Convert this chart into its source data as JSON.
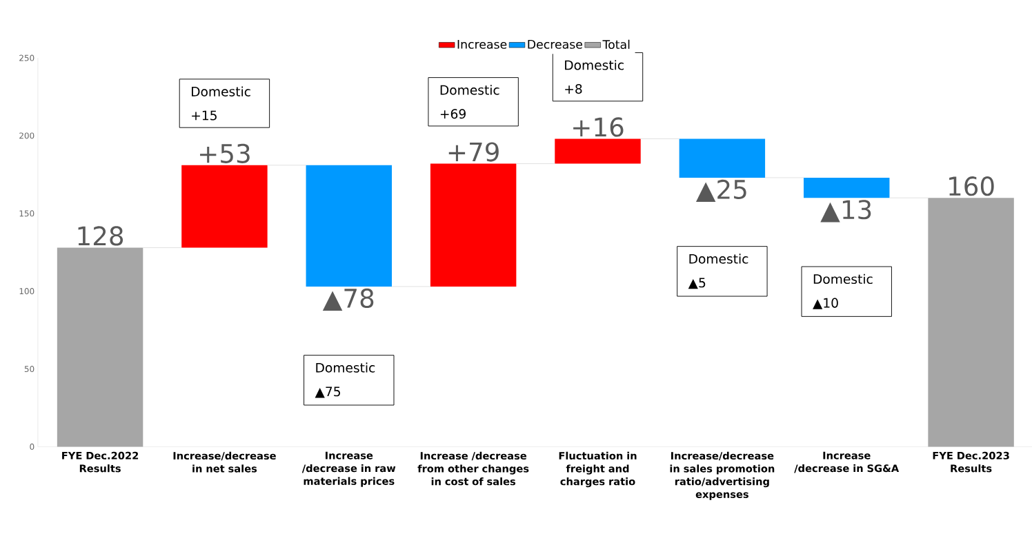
{
  "chart_data": {
    "type": "bar",
    "categories": [
      "FYE Dec.2022 Results",
      "Increase/decrease in net sales",
      "Increase /decrease in raw materials prices",
      "Increase /decrease from other changes in cost of sales",
      "Fluctuation in freight and charges ratio",
      "Increase/decrease in sales promotion ratio/advertising expenses",
      "Increase /decrease in SG&A",
      "FYE Dec.2023 Results"
    ],
    "series": [
      {
        "name": "Increase",
        "color": "#ff0000",
        "base": [
          null,
          128,
          null,
          103,
          182,
          null,
          null,
          null
        ],
        "values": [
          null,
          53,
          null,
          79,
          16,
          null,
          null,
          null
        ],
        "value_labels": [
          null,
          "+53",
          null,
          "+79",
          "+16",
          null,
          null,
          null
        ]
      },
      {
        "name": "Decrease",
        "color": "#0099ff",
        "base": [
          null,
          null,
          103,
          null,
          null,
          173,
          160,
          null
        ],
        "values": [
          null,
          null,
          78,
          null,
          null,
          25,
          13,
          null
        ],
        "value_labels": [
          null,
          null,
          "▲78",
          null,
          null,
          "▲25",
          "▲13",
          null
        ]
      },
      {
        "name": "Total",
        "color": "#a6a6a6",
        "base": [
          0,
          null,
          null,
          null,
          null,
          null,
          null,
          0
        ],
        "values": [
          128,
          null,
          null,
          null,
          null,
          null,
          null,
          160
        ],
        "value_labels": [
          "128",
          null,
          null,
          null,
          null,
          null,
          null,
          "160"
        ]
      }
    ],
    "ylim": [
      0,
      250
    ],
    "yticks": [
      0,
      50,
      100,
      150,
      200,
      250
    ],
    "legend": "top",
    "grid": false,
    "annotations": [
      "Domestic +15",
      "Domestic ▲75",
      "Domestic +69",
      "Domestic +8",
      "Domestic ▲5",
      "Domestic ▲10"
    ]
  }
}
